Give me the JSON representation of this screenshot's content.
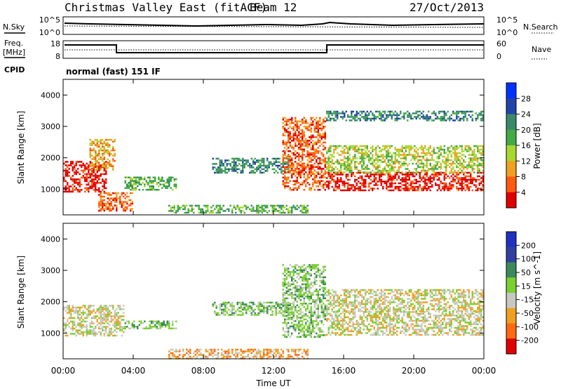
{
  "header": {
    "title": "Christmas Valley East (fitACF)",
    "beam": "Beam 12",
    "date": "27/Oct/2013"
  },
  "panels": {
    "nsky_label": "N.Sky",
    "nsky_ticks": [
      "10^5",
      "10^0"
    ],
    "nsearch_label": "N.Search",
    "freq_label": [
      "Freq.",
      "[MHz]"
    ],
    "freq_ticks": [
      "18",
      "8"
    ],
    "nave_label": "Nave",
    "nave_ticks": [
      "60",
      "0"
    ],
    "cpid_label": "CPID",
    "cpid_value": "normal (fast) 151 IF"
  },
  "colors": {
    "power": [
      "#0033ff",
      "#2244aa",
      "#3a8a6a",
      "#44aa44",
      "#a8d830",
      "#f0a020",
      "#ff5a10",
      "#e00000"
    ],
    "velocity": [
      "#e00000",
      "#ff6a10",
      "#f0a020",
      "#c8c8c0",
      "#7ad030",
      "#3a8a5a",
      "#3040a0",
      "#2030c0"
    ]
  },
  "chart_data": [
    {
      "type": "heatmap",
      "name": "power",
      "ylabel": "Slant Range [km]",
      "yticks": [
        "4000",
        "3000",
        "2000",
        "1000"
      ],
      "ylim": [
        180,
        4500
      ],
      "xlim": [
        0,
        24
      ],
      "colorbar_label": "Power [dB]",
      "colorbar_ticks": [
        "28",
        "24",
        "20",
        "16",
        "12",
        "8",
        "4"
      ],
      "echo_bands": [
        {
          "t": [
            0.0,
            2.5
          ],
          "r": [
            900,
            1900
          ],
          "level": 7
        },
        {
          "t": [
            2.0,
            4.0
          ],
          "r": [
            300,
            900
          ],
          "level": 6
        },
        {
          "t": [
            1.5,
            3.0
          ],
          "r": [
            1600,
            2600
          ],
          "level": 5
        },
        {
          "t": [
            3.5,
            6.5
          ],
          "r": [
            1000,
            1400
          ],
          "level": 3
        },
        {
          "t": [
            8.5,
            13.0
          ],
          "r": [
            1550,
            2000
          ],
          "level": 2
        },
        {
          "t": [
            6.0,
            14.0
          ],
          "r": [
            250,
            500
          ],
          "level": 3
        },
        {
          "t": [
            12.5,
            15.0
          ],
          "r": [
            1000,
            3300
          ],
          "level": 6
        },
        {
          "t": [
            15.0,
            24.0
          ],
          "r": [
            950,
            1550
          ],
          "level": 7
        },
        {
          "t": [
            15.0,
            24.0
          ],
          "r": [
            1550,
            2400
          ],
          "level": 4
        },
        {
          "t": [
            15.0,
            24.0
          ],
          "r": [
            3200,
            3500
          ],
          "level": 2
        }
      ]
    },
    {
      "type": "heatmap",
      "name": "velocity",
      "xlabel": "Time UT",
      "xticks": [
        "00:00",
        "04:00",
        "08:00",
        "12:00",
        "16:00",
        "20:00",
        "00:00"
      ],
      "ylabel": "Slant Range [km]",
      "yticks": [
        "4000",
        "3000",
        "2000",
        "1000"
      ],
      "ylim": [
        180,
        4500
      ],
      "xlim": [
        0,
        24
      ],
      "colorbar_label": "Velocity [m s^-1]",
      "colorbar_ticks": [
        "200",
        "100",
        "50",
        "15",
        "-15",
        "-50",
        "-100",
        "-200"
      ],
      "echo_bands": [
        {
          "t": [
            0.0,
            3.5
          ],
          "r": [
            900,
            1900
          ],
          "level": 3
        },
        {
          "t": [
            3.5,
            6.5
          ],
          "r": [
            1150,
            1400
          ],
          "level": 4
        },
        {
          "t": [
            8.5,
            13.0
          ],
          "r": [
            1600,
            2000
          ],
          "level": 4
        },
        {
          "t": [
            12.5,
            15.0
          ],
          "r": [
            900,
            3200
          ],
          "level": 4
        },
        {
          "t": [
            6.0,
            14.0
          ],
          "r": [
            200,
            500
          ],
          "level": 2
        },
        {
          "t": [
            15.0,
            24.0
          ],
          "r": [
            950,
            1700
          ],
          "level": 3
        },
        {
          "t": [
            15.0,
            24.0
          ],
          "r": [
            1700,
            2400
          ],
          "level": 3
        }
      ]
    }
  ]
}
